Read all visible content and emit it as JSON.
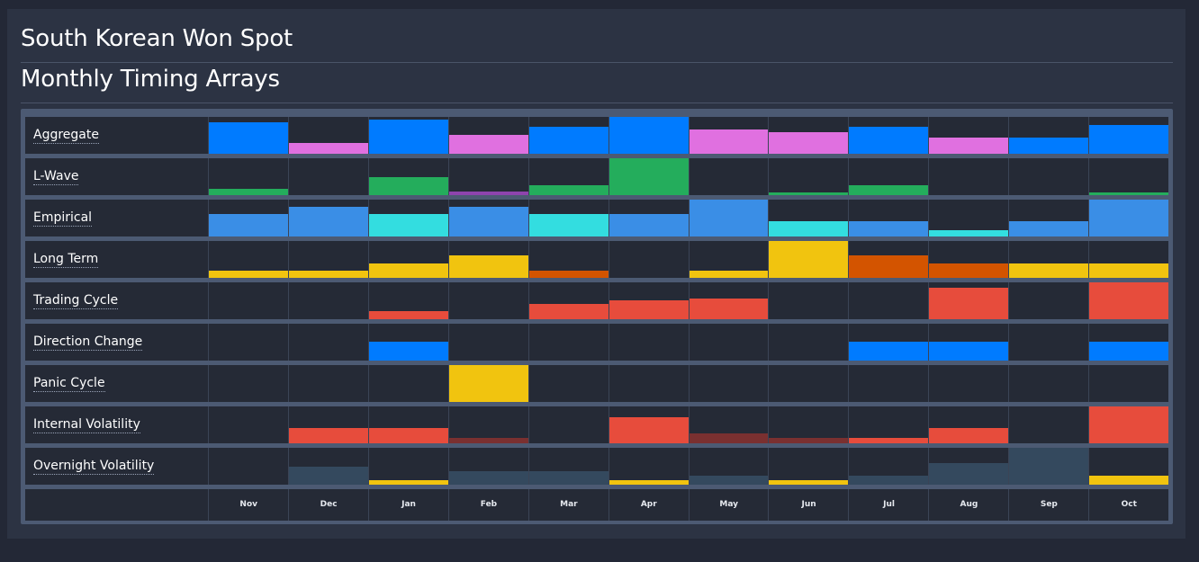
{
  "title": "South Korean Won Spot",
  "subtitle": "Monthly Timing Arrays",
  "chart_data": {
    "type": "heatmap",
    "title": "Monthly Timing Arrays",
    "x_label": "",
    "categories": [
      "Nov",
      "Dec",
      "Jan",
      "Feb",
      "Mar",
      "Apr",
      "May",
      "Jun",
      "Jul",
      "Aug",
      "Sep",
      "Oct"
    ],
    "value_scale": [
      0,
      1
    ],
    "rows": [
      {
        "name": "Aggregate",
        "values": [
          0.85,
          0.3,
          0.92,
          0.52,
          0.72,
          1.0,
          0.65,
          0.58,
          0.72,
          0.45,
          0.45,
          0.78
        ],
        "colors": [
          "#007bff",
          "#e070e0",
          "#007bff",
          "#e070e0",
          "#007bff",
          "#007bff",
          "#e070e0",
          "#e070e0",
          "#007bff",
          "#e070e0",
          "#007bff",
          "#007bff"
        ]
      },
      {
        "name": "L-Wave",
        "values": [
          0.18,
          0,
          0.48,
          0.1,
          0.28,
          1.0,
          0,
          0.08,
          0.28,
          0,
          0,
          0.08
        ],
        "colors": [
          "#24ad5c",
          "#24ad5c",
          "#24ad5c",
          "#8e44ad",
          "#24ad5c",
          "#24ad5c",
          "#24ad5c",
          "#24ad5c",
          "#24ad5c",
          "#24ad5c",
          "#24ad5c",
          "#24ad5c"
        ]
      },
      {
        "name": "Empirical",
        "values": [
          0.6,
          0.8,
          0.6,
          0.8,
          0.6,
          0.6,
          1.0,
          0.42,
          0.42,
          0.18,
          0.42,
          1.0
        ],
        "colors": [
          "#3a8ee6",
          "#3a8ee6",
          "#33dde0",
          "#3a8ee6",
          "#33dde0",
          "#3a8ee6",
          "#3a8ee6",
          "#33dde0",
          "#3a8ee6",
          "#33dde0",
          "#3a8ee6",
          "#3a8ee6"
        ]
      },
      {
        "name": "Long Term",
        "values": [
          0.2,
          0.2,
          0.4,
          0.6,
          0.2,
          0,
          0.2,
          1.0,
          0.6,
          0.4,
          0.4,
          0.4
        ],
        "colors": [
          "#f1c40f",
          "#f1c40f",
          "#f1c40f",
          "#f1c40f",
          "#d35400",
          "#f1c40f",
          "#f1c40f",
          "#f1c40f",
          "#d35400",
          "#d35400",
          "#f1c40f",
          "#f1c40f"
        ]
      },
      {
        "name": "Trading Cycle",
        "values": [
          0,
          0,
          0.22,
          0,
          0.42,
          0.5,
          0.56,
          0,
          0,
          0.85,
          0,
          1.0
        ],
        "colors": [
          "#e74c3c",
          "#e74c3c",
          "#e74c3c",
          "#e74c3c",
          "#e74c3c",
          "#e74c3c",
          "#e74c3c",
          "#e74c3c",
          "#e74c3c",
          "#e74c3c",
          "#e74c3c",
          "#e74c3c"
        ]
      },
      {
        "name": "Direction Change",
        "values": [
          0,
          0,
          0.5,
          0,
          0,
          0,
          0,
          0,
          0.5,
          0.5,
          0,
          0.5
        ],
        "colors": [
          "#007bff",
          "#007bff",
          "#007bff",
          "#007bff",
          "#007bff",
          "#007bff",
          "#007bff",
          "#007bff",
          "#007bff",
          "#007bff",
          "#007bff",
          "#007bff"
        ]
      },
      {
        "name": "Panic Cycle",
        "values": [
          0,
          0,
          0,
          1.0,
          0,
          0,
          0,
          0,
          0,
          0,
          0,
          0
        ],
        "colors": [
          "#f1c40f",
          "#f1c40f",
          "#f1c40f",
          "#f1c40f",
          "#f1c40f",
          "#f1c40f",
          "#f1c40f",
          "#f1c40f",
          "#f1c40f",
          "#f1c40f",
          "#f1c40f",
          "#f1c40f"
        ]
      },
      {
        "name": "Internal Volatility",
        "values": [
          0,
          0.42,
          0.42,
          0.14,
          0,
          0.7,
          0.28,
          0.14,
          0.14,
          0.42,
          0,
          1.0
        ],
        "colors": [
          "#e74c3c",
          "#e74c3c",
          "#e74c3c",
          "#7a3030",
          "#e74c3c",
          "#e74c3c",
          "#7a3030",
          "#7a3030",
          "#e74c3c",
          "#e74c3c",
          "#e74c3c",
          "#e74c3c"
        ]
      },
      {
        "name": "Overnight Volatility",
        "values": [
          0,
          0.48,
          0.12,
          0.36,
          0.36,
          0.12,
          0.24,
          0.12,
          0.24,
          0.58,
          1.0,
          0.24
        ],
        "colors": [
          "#34495e",
          "#34495e",
          "#f1c40f",
          "#34495e",
          "#34495e",
          "#f1c40f",
          "#34495e",
          "#f1c40f",
          "#34495e",
          "#34495e",
          "#34495e",
          "#f1c40f"
        ]
      }
    ]
  }
}
